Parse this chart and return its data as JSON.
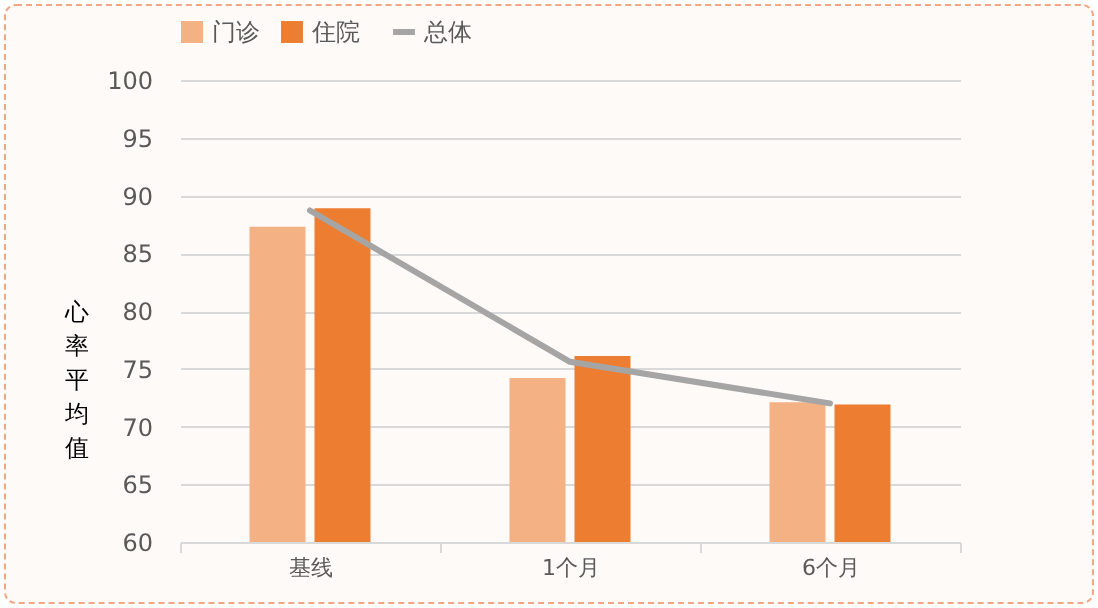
{
  "chart_data": {
    "type": "bar",
    "ylabel": "心率平均值",
    "categories": [
      "基线",
      "1个月",
      "6个月"
    ],
    "series": [
      {
        "name": "门诊",
        "color": "#f4b183",
        "values": [
          87.3,
          74.2,
          72.1
        ]
      },
      {
        "name": "住院",
        "color": "#ed7d31",
        "values": [
          88.9,
          76.1,
          71.9
        ]
      },
      {
        "name": "总体",
        "type": "line",
        "color": "#a5a5a5",
        "values": [
          88.7,
          75.6,
          72.0
        ]
      }
    ],
    "ylim": [
      60,
      100
    ],
    "yticks": [
      60,
      65,
      70,
      75,
      80,
      85,
      90,
      95,
      100
    ],
    "grid": "y",
    "legend": "top",
    "marker": "none"
  }
}
